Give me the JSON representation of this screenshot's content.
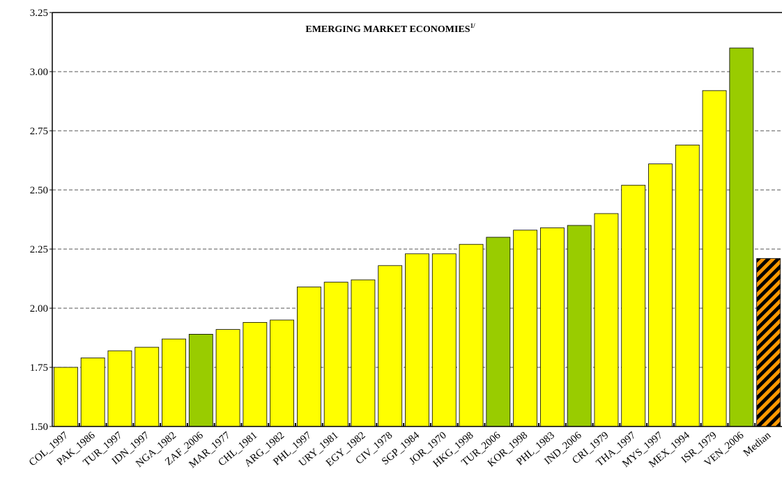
{
  "chart_data": {
    "type": "bar",
    "title": "EMERGING MARKET ECONOMIES",
    "title_note": "1/",
    "categories": [
      "COL_1997",
      "PAK_1986",
      "TUR_1997",
      "IDN_1997",
      "NGA_1982",
      "ZAF_2006",
      "MAR_1977",
      "CHL_1981",
      "ARG_1982",
      "PHL_1997",
      "URY_1981",
      "EGY_1982",
      "CIV_1978",
      "SGP_1984",
      "JOR_1970",
      "HKG_1998",
      "TUR_2006",
      "KOR_1998",
      "PHL_1983",
      "IND_2006",
      "CRI_1979",
      "THA_1997",
      "MYS_1997",
      "MEX_1994",
      "ISR_1979",
      "VEN_2006",
      "Median"
    ],
    "values": [
      1.75,
      1.79,
      1.82,
      1.835,
      1.87,
      1.89,
      1.91,
      1.94,
      1.95,
      2.09,
      2.11,
      2.12,
      2.18,
      2.23,
      2.23,
      2.27,
      2.3,
      2.33,
      2.34,
      2.35,
      2.4,
      2.52,
      2.61,
      2.69,
      2.92,
      3.1,
      2.21
    ],
    "colors": [
      "#ffff00",
      "#ffff00",
      "#ffff00",
      "#ffff00",
      "#ffff00",
      "#99cc00",
      "#ffff00",
      "#ffff00",
      "#ffff00",
      "#ffff00",
      "#ffff00",
      "#ffff00",
      "#ffff00",
      "#ffff00",
      "#ffff00",
      "#ffff00",
      "#99cc00",
      "#ffff00",
      "#ffff00",
      "#99cc00",
      "#ffff00",
      "#ffff00",
      "#ffff00",
      "#ffff00",
      "#ffff00",
      "#99cc00",
      "#ff9900"
    ],
    "hatched": [
      false,
      false,
      false,
      false,
      false,
      false,
      false,
      false,
      false,
      false,
      false,
      false,
      false,
      false,
      false,
      false,
      false,
      false,
      false,
      false,
      false,
      false,
      false,
      false,
      false,
      false,
      true
    ],
    "hatch_color": "#000000",
    "ylim": [
      1.5,
      3.25
    ],
    "yticks": [
      {
        "value": 1.5,
        "label": "1.50"
      },
      1.75,
      {
        "value": 2,
        "label": "2.00"
      },
      2.25,
      {
        "value": 2.5,
        "label": "2.50"
      },
      2.75,
      {
        "value": 3,
        "label": "3.00"
      },
      3.25
    ],
    "grid": true
  }
}
